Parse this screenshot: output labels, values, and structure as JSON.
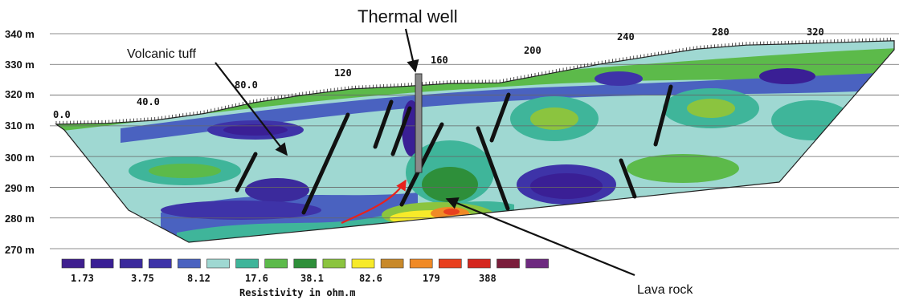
{
  "chart_data": {
    "type": "heatmap",
    "subtype": "electrical-resistivity-tomography-section",
    "y_axis": {
      "unit": "m",
      "ticks": [
        "340 m",
        "330 m",
        "320 m",
        "310 m",
        "300 m",
        "290 m",
        "280 m",
        "270 m"
      ],
      "values": [
        340,
        330,
        320,
        310,
        300,
        290,
        280,
        270
      ],
      "range": [
        270,
        340
      ],
      "grid": true
    },
    "x_axis": {
      "ticks": [
        "0.0",
        "40.0",
        "80.0",
        "120",
        "160",
        "200",
        "240",
        "280",
        "320"
      ],
      "values": [
        0,
        40,
        80,
        120,
        160,
        200,
        240,
        280,
        320
      ],
      "range": [
        0,
        340
      ]
    },
    "color_scale": {
      "label": "Resistivity in ohm.m",
      "labeled_values": [
        "1.73",
        "3.75",
        "8.12",
        "17.6",
        "38.1",
        "82.6",
        "179",
        "388"
      ],
      "colors": [
        "#3f1f8f",
        "#3a1f95",
        "#3b2a9c",
        "#3e33a8",
        "#4a62c0",
        "#9fd8d2",
        "#3fb59a",
        "#5cba4a",
        "#2e8f3a",
        "#8bc43f",
        "#f7ea29",
        "#c8892a",
        "#f08a26",
        "#e8401f",
        "#d5261e",
        "#7a1d3b",
        "#6e2a80"
      ]
    },
    "terrain_profile": [
      [
        0,
        310.5
      ],
      [
        20,
        310.8
      ],
      [
        40,
        311.8
      ],
      [
        60,
        314
      ],
      [
        80,
        317.5
      ],
      [
        100,
        320
      ],
      [
        120,
        322
      ],
      [
        140,
        322.8
      ],
      [
        160,
        323.8
      ],
      [
        180,
        324
      ],
      [
        200,
        327
      ],
      [
        220,
        330
      ],
      [
        240,
        332.5
      ],
      [
        260,
        335
      ],
      [
        280,
        336.3
      ],
      [
        300,
        336.7
      ],
      [
        320,
        337.2
      ],
      [
        340,
        337.7
      ]
    ],
    "annotations": [
      {
        "text": "Thermal well",
        "x": 160,
        "y": 320
      },
      {
        "text": "Volcanic tuff",
        "x": 92,
        "y": 301
      },
      {
        "text": "Lava rock",
        "x": 168,
        "y": 281
      }
    ]
  }
}
